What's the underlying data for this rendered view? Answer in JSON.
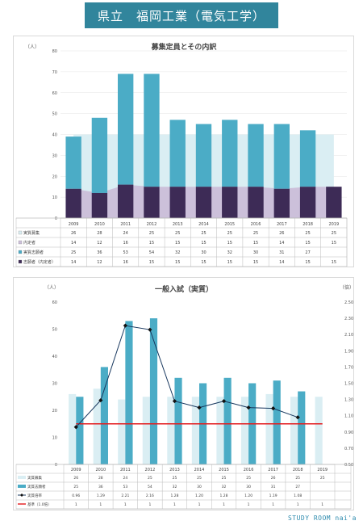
{
  "header": {
    "title": "県立　福岡工業（電気工学）"
  },
  "footer": {
    "brand": "STUDY ROOM nai'a"
  },
  "colors": {
    "banner": "#31859c",
    "light": "#daeef3",
    "teal": "#4bacc6",
    "lavender": "#ccc0da",
    "dark": "#3d2b56",
    "navy": "#17375e",
    "red": "#e41a1c"
  },
  "chart_data": [
    {
      "type": "bar",
      "title": "募集定員とその内訳",
      "ylabel": "（人）",
      "ylim": [
        0,
        80
      ],
      "yticks": [
        0,
        10,
        20,
        30,
        40,
        50,
        60,
        70,
        80
      ],
      "categories": [
        "2009",
        "2010",
        "2011",
        "2012",
        "2013",
        "2014",
        "2015",
        "2016",
        "2017",
        "2018",
        "2019"
      ],
      "series": [
        {
          "name": "実質募集",
          "kind": "area",
          "values": [
            26,
            28,
            24,
            25,
            25,
            25,
            25,
            25,
            26,
            25,
            25
          ]
        },
        {
          "name": "内定者",
          "kind": "area",
          "values": [
            14,
            12,
            16,
            15,
            15,
            15,
            15,
            15,
            14,
            15,
            15
          ]
        },
        {
          "name": "実質志願者",
          "kind": "stacked-bar",
          "values": [
            25,
            36,
            53,
            54,
            32,
            30,
            32,
            30,
            31,
            27,
            null
          ]
        },
        {
          "name": "志願者（内定者）",
          "kind": "stacked-bar",
          "values": [
            14,
            12,
            16,
            15,
            15,
            15,
            15,
            15,
            14,
            15,
            15
          ]
        }
      ],
      "table_rows": [
        [
          "26",
          "28",
          "24",
          "25",
          "25",
          "25",
          "25",
          "25",
          "26",
          "25",
          "25"
        ],
        [
          "14",
          "12",
          "16",
          "15",
          "15",
          "15",
          "15",
          "15",
          "14",
          "15",
          "15"
        ],
        [
          "25",
          "36",
          "53",
          "54",
          "32",
          "30",
          "32",
          "30",
          "31",
          "27",
          ""
        ],
        [
          "14",
          "12",
          "16",
          "15",
          "15",
          "15",
          "15",
          "15",
          "14",
          "15",
          "15"
        ]
      ]
    },
    {
      "type": "bar",
      "title": "一般入試（実質）",
      "ylabel": "（人）",
      "y2label": "（倍）",
      "ylim": [
        0,
        60
      ],
      "yticks": [
        0,
        10,
        20,
        30,
        40,
        50,
        60
      ],
      "y2lim": [
        0.5,
        2.5
      ],
      "y2ticks": [
        "0.50",
        "0.70",
        "0.90",
        "1.10",
        "1.30",
        "1.50",
        "1.70",
        "1.90",
        "2.10",
        "2.30",
        "2.50"
      ],
      "categories": [
        "2009",
        "2010",
        "2011",
        "2012",
        "2013",
        "2014",
        "2015",
        "2016",
        "2017",
        "2018",
        "2019"
      ],
      "series": [
        {
          "name": "実質募集",
          "kind": "bar",
          "values": [
            26,
            28,
            24,
            25,
            25,
            25,
            25,
            25,
            26,
            25,
            25
          ]
        },
        {
          "name": "実質志願者",
          "kind": "bar",
          "values": [
            25,
            36,
            53,
            54,
            32,
            30,
            32,
            30,
            31,
            27,
            null
          ]
        },
        {
          "name": "実質倍率",
          "kind": "line",
          "values": [
            0.96,
            1.29,
            2.21,
            2.16,
            1.28,
            1.2,
            1.28,
            1.2,
            1.19,
            1.08,
            null
          ]
        },
        {
          "name": "基準（1.0倍）",
          "kind": "line",
          "values": [
            1,
            1,
            1,
            1,
            1,
            1,
            1,
            1,
            1,
            1,
            1
          ]
        }
      ],
      "table_rows": [
        [
          "26",
          "28",
          "24",
          "25",
          "25",
          "25",
          "25",
          "25",
          "26",
          "25",
          "25"
        ],
        [
          "25",
          "36",
          "53",
          "54",
          "32",
          "30",
          "32",
          "30",
          "31",
          "27",
          ""
        ],
        [
          "0.96",
          "1.29",
          "2.21",
          "2.16",
          "1.28",
          "1.20",
          "1.28",
          "1.20",
          "1.19",
          "1.08",
          ""
        ],
        [
          "1",
          "1",
          "1",
          "1",
          "1",
          "1",
          "1",
          "1",
          "1",
          "1",
          "1"
        ]
      ]
    }
  ]
}
